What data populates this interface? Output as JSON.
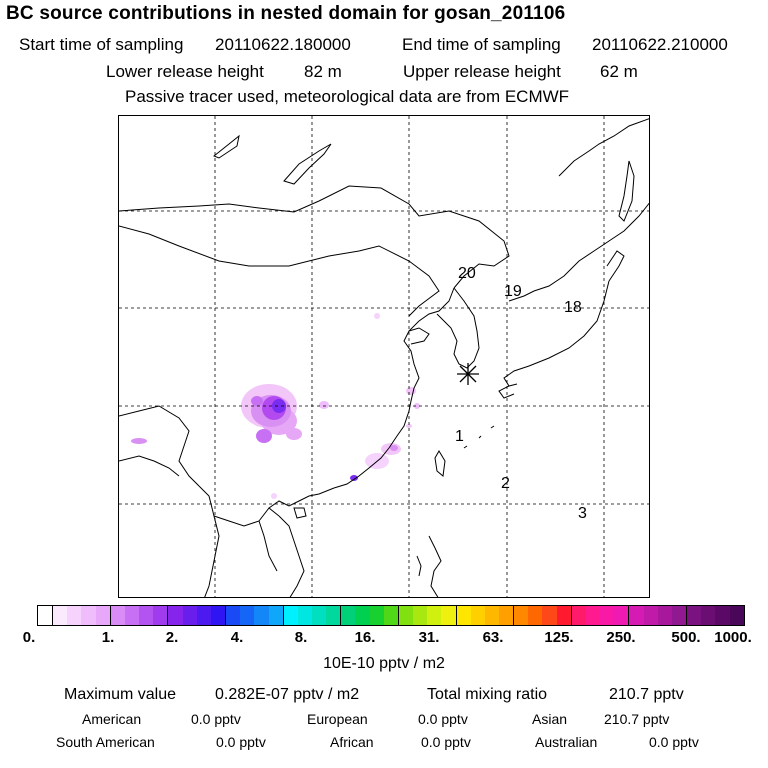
{
  "header": {
    "title": "BC  source contributions in nested domain for gosan_201106",
    "start_label": "Start time of sampling",
    "start_value": "20110622.180000",
    "end_label": "End time of sampling",
    "end_value": "20110622.210000",
    "lower_label": "Lower release height",
    "lower_value": "82 m",
    "upper_label": "Upper release height",
    "upper_value": "62 m",
    "note": "Passive tracer used, meteorological data are from ECMWF"
  },
  "map": {
    "trajectory_labels": [
      "20",
      "19",
      "18",
      "1",
      "2",
      "3"
    ],
    "receptor_marker": "star-marker",
    "grid": "dashed",
    "plume_colors": [
      "#f2c6f8",
      "#d890f2",
      "#b34af0",
      "#7a2cf0",
      "#5a1ef5"
    ]
  },
  "colorbar": {
    "colors": [
      "#ffffff",
      "#fbe9fe",
      "#f6d3fd",
      "#efbdfb",
      "#e7a8f9",
      "#da8cf6",
      "#c870f3",
      "#b454f0",
      "#a03bee",
      "#8724ec",
      "#6a1eee",
      "#4c19f0",
      "#3015f3",
      "#1a4af5",
      "#1566f7",
      "#1386f8",
      "#10a6fa",
      "#00f0ff",
      "#00e6e0",
      "#00dfc0",
      "#00d89e",
      "#00d078",
      "#00d050",
      "#18d030",
      "#50d818",
      "#80e010",
      "#a8e810",
      "#d0f010",
      "#f0f010",
      "#ffe600",
      "#ffd000",
      "#ffb800",
      "#ffa000",
      "#ff8800",
      "#ff6800",
      "#ff4818",
      "#ff1a30",
      "#ff1a6a",
      "#ff1a90",
      "#f81aa6",
      "#ee1ab2",
      "#d61ab4",
      "#c01aa8",
      "#a8189c",
      "#901890",
      "#7a1282",
      "#6a0e74",
      "#5a0a66",
      "#4a075a"
    ],
    "ticks": [
      "0.",
      "1.",
      "2.",
      "4.",
      "8.",
      "16.",
      "31.",
      "63.",
      "125.",
      "250.",
      "500.",
      "1000."
    ],
    "units": "10E-10 pptv / m2"
  },
  "stats": {
    "max_label": "Maximum value",
    "max_value": "0.282E-07 pptv / m2",
    "total_label": "Total mixing ratio",
    "total_value": "210.7 pptv",
    "american_label": "American",
    "american_value": "0.0 pptv",
    "european_label": "European",
    "european_value": "0.0 pptv",
    "asian_label": "Asian",
    "asian_value": "210.7 pptv",
    "southamerican_label": "South American",
    "southamerican_value": "0.0 pptv",
    "african_label": "African",
    "african_value": "0.0 pptv",
    "australian_label": "Australian",
    "australian_value": "0.0 pptv"
  }
}
